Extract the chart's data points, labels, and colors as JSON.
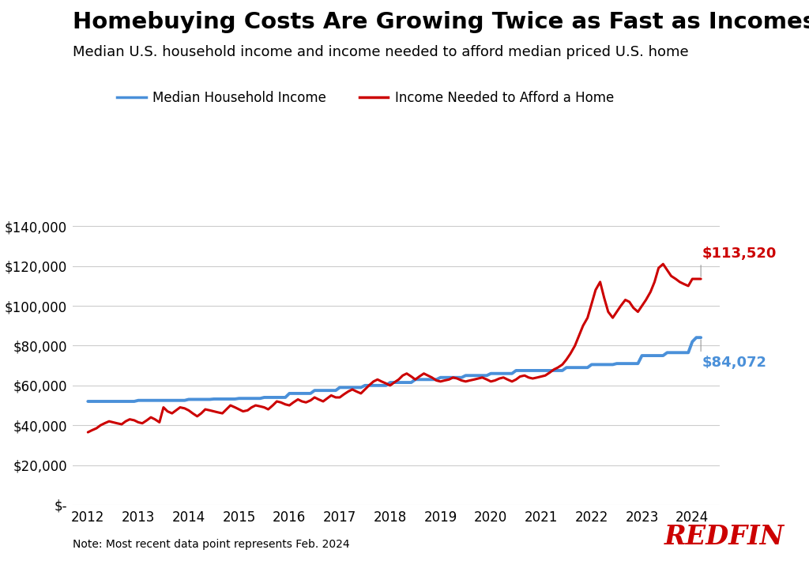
{
  "title": "Homebuying Costs Are Growing Twice as Fast as Incomes",
  "subtitle": "Median U.S. household income and income needed to afford median priced U.S. home",
  "note": "Note: Most recent data point represents Feb. 2024",
  "redfin_text": "REDFIN",
  "background_color": "#ffffff",
  "title_fontsize": 21,
  "subtitle_fontsize": 13,
  "median_household_income_color": "#4A90D9",
  "income_needed_color": "#CC0000",
  "annotation_red": "$113,520",
  "annotation_blue": "$84,072",
  "ylim": [
    0,
    155000
  ],
  "yticks": [
    0,
    20000,
    40000,
    60000,
    80000,
    100000,
    120000,
    140000
  ],
  "ytick_labels": [
    "$-",
    "$20,000",
    "$40,000",
    "$60,000",
    "$80,000",
    "$100,000",
    "$120,000",
    "$140,000"
  ],
  "xlim": [
    2011.7,
    2024.55
  ],
  "xticks": [
    2012,
    2013,
    2014,
    2015,
    2016,
    2017,
    2018,
    2019,
    2020,
    2021,
    2022,
    2023,
    2024
  ],
  "median_household_income": {
    "dates": [
      2012.0,
      2012.08,
      2012.17,
      2012.25,
      2012.33,
      2012.42,
      2012.5,
      2012.58,
      2012.67,
      2012.75,
      2012.83,
      2012.92,
      2013.0,
      2013.08,
      2013.17,
      2013.25,
      2013.33,
      2013.42,
      2013.5,
      2013.58,
      2013.67,
      2013.75,
      2013.83,
      2013.92,
      2014.0,
      2014.08,
      2014.17,
      2014.25,
      2014.33,
      2014.42,
      2014.5,
      2014.58,
      2014.67,
      2014.75,
      2014.83,
      2014.92,
      2015.0,
      2015.08,
      2015.17,
      2015.25,
      2015.33,
      2015.42,
      2015.5,
      2015.58,
      2015.67,
      2015.75,
      2015.83,
      2015.92,
      2016.0,
      2016.08,
      2016.17,
      2016.25,
      2016.33,
      2016.42,
      2016.5,
      2016.58,
      2016.67,
      2016.75,
      2016.83,
      2016.92,
      2017.0,
      2017.08,
      2017.17,
      2017.25,
      2017.33,
      2017.42,
      2017.5,
      2017.58,
      2017.67,
      2017.75,
      2017.83,
      2017.92,
      2018.0,
      2018.08,
      2018.17,
      2018.25,
      2018.33,
      2018.42,
      2018.5,
      2018.58,
      2018.67,
      2018.75,
      2018.83,
      2018.92,
      2019.0,
      2019.08,
      2019.17,
      2019.25,
      2019.33,
      2019.42,
      2019.5,
      2019.58,
      2019.67,
      2019.75,
      2019.83,
      2019.92,
      2020.0,
      2020.08,
      2020.17,
      2020.25,
      2020.33,
      2020.42,
      2020.5,
      2020.58,
      2020.67,
      2020.75,
      2020.83,
      2020.92,
      2021.0,
      2021.08,
      2021.17,
      2021.25,
      2021.33,
      2021.42,
      2021.5,
      2021.58,
      2021.67,
      2021.75,
      2021.83,
      2021.92,
      2022.0,
      2022.08,
      2022.17,
      2022.25,
      2022.33,
      2022.42,
      2022.5,
      2022.58,
      2022.67,
      2022.75,
      2022.83,
      2022.92,
      2023.0,
      2023.08,
      2023.17,
      2023.25,
      2023.33,
      2023.42,
      2023.5,
      2023.58,
      2023.67,
      2023.75,
      2023.83,
      2023.92,
      2024.0,
      2024.08,
      2024.17
    ],
    "values": [
      52000,
      52000,
      52000,
      52000,
      52000,
      52000,
      52000,
      52000,
      52000,
      52000,
      52000,
      52000,
      52500,
      52500,
      52500,
      52500,
      52500,
      52500,
      52500,
      52500,
      52500,
      52500,
      52500,
      52500,
      53000,
      53000,
      53000,
      53000,
      53000,
      53000,
      53200,
      53200,
      53200,
      53200,
      53200,
      53200,
      53500,
      53500,
      53500,
      53500,
      53500,
      53500,
      54000,
      54000,
      54000,
      54000,
      54000,
      54000,
      56000,
      56000,
      56000,
      56000,
      56000,
      56000,
      57500,
      57500,
      57500,
      57500,
      57500,
      57500,
      59000,
      59000,
      59000,
      59000,
      59000,
      59000,
      60000,
      60000,
      60000,
      60000,
      60000,
      60000,
      61500,
      61500,
      61500,
      61500,
      61500,
      61500,
      63000,
      63000,
      63000,
      63000,
      63000,
      63000,
      64000,
      64000,
      64000,
      64000,
      64000,
      64000,
      65000,
      65000,
      65000,
      65000,
      65000,
      65000,
      66000,
      66000,
      66000,
      66000,
      66000,
      66000,
      67500,
      67500,
      67500,
      67500,
      67500,
      67500,
      67500,
      67500,
      67500,
      67500,
      67500,
      67500,
      69000,
      69000,
      69000,
      69000,
      69000,
      69000,
      70500,
      70500,
      70500,
      70500,
      70500,
      70500,
      71000,
      71000,
      71000,
      71000,
      71000,
      71000,
      75000,
      75000,
      75000,
      75000,
      75000,
      75000,
      76500,
      76500,
      76500,
      76500,
      76500,
      76500,
      82000,
      84072,
      84072
    ]
  },
  "income_needed": {
    "dates": [
      2012.0,
      2012.08,
      2012.17,
      2012.25,
      2012.33,
      2012.42,
      2012.5,
      2012.58,
      2012.67,
      2012.75,
      2012.83,
      2012.92,
      2013.0,
      2013.08,
      2013.17,
      2013.25,
      2013.33,
      2013.42,
      2013.5,
      2013.58,
      2013.67,
      2013.75,
      2013.83,
      2013.92,
      2014.0,
      2014.08,
      2014.17,
      2014.25,
      2014.33,
      2014.42,
      2014.5,
      2014.58,
      2014.67,
      2014.75,
      2014.83,
      2014.92,
      2015.0,
      2015.08,
      2015.17,
      2015.25,
      2015.33,
      2015.42,
      2015.5,
      2015.58,
      2015.67,
      2015.75,
      2015.83,
      2015.92,
      2016.0,
      2016.08,
      2016.17,
      2016.25,
      2016.33,
      2016.42,
      2016.5,
      2016.58,
      2016.67,
      2016.75,
      2016.83,
      2016.92,
      2017.0,
      2017.08,
      2017.17,
      2017.25,
      2017.33,
      2017.42,
      2017.5,
      2017.58,
      2017.67,
      2017.75,
      2017.83,
      2017.92,
      2018.0,
      2018.08,
      2018.17,
      2018.25,
      2018.33,
      2018.42,
      2018.5,
      2018.58,
      2018.67,
      2018.75,
      2018.83,
      2018.92,
      2019.0,
      2019.08,
      2019.17,
      2019.25,
      2019.33,
      2019.42,
      2019.5,
      2019.58,
      2019.67,
      2019.75,
      2019.83,
      2019.92,
      2020.0,
      2020.08,
      2020.17,
      2020.25,
      2020.33,
      2020.42,
      2020.5,
      2020.58,
      2020.67,
      2020.75,
      2020.83,
      2020.92,
      2021.0,
      2021.08,
      2021.17,
      2021.25,
      2021.33,
      2021.42,
      2021.5,
      2021.58,
      2021.67,
      2021.75,
      2021.83,
      2021.92,
      2022.0,
      2022.08,
      2022.17,
      2022.25,
      2022.33,
      2022.42,
      2022.5,
      2022.58,
      2022.67,
      2022.75,
      2022.83,
      2022.92,
      2023.0,
      2023.08,
      2023.17,
      2023.25,
      2023.33,
      2023.42,
      2023.5,
      2023.58,
      2023.67,
      2023.75,
      2023.83,
      2023.92,
      2024.0,
      2024.08,
      2024.17
    ],
    "values": [
      36500,
      37500,
      38500,
      40000,
      41000,
      42000,
      41500,
      41000,
      40500,
      42000,
      43000,
      42500,
      41500,
      41000,
      42500,
      44000,
      43000,
      41500,
      49000,
      47000,
      46000,
      47500,
      49000,
      48500,
      47500,
      46000,
      44500,
      46000,
      48000,
      47500,
      47000,
      46500,
      46000,
      48000,
      50000,
      49000,
      48000,
      47000,
      47500,
      49000,
      50000,
      49500,
      49000,
      48000,
      50000,
      52000,
      51500,
      50500,
      50000,
      51500,
      53000,
      52000,
      51500,
      52500,
      54000,
      53000,
      52000,
      53500,
      55000,
      54000,
      54000,
      55500,
      57000,
      58000,
      57000,
      56000,
      58000,
      60000,
      62000,
      63000,
      62000,
      61000,
      60000,
      61500,
      63000,
      65000,
      66000,
      64500,
      63000,
      64500,
      66000,
      65000,
      64000,
      62500,
      62000,
      62500,
      63000,
      64000,
      63500,
      62500,
      62000,
      62500,
      63000,
      63500,
      64000,
      63000,
      62000,
      62500,
      63500,
      64000,
      63000,
      62000,
      63000,
      64500,
      65000,
      64000,
      63500,
      64000,
      64500,
      65000,
      66500,
      68000,
      69000,
      70500,
      73000,
      76000,
      80000,
      85000,
      90000,
      94000,
      101000,
      108000,
      112000,
      104000,
      97000,
      94000,
      97000,
      100000,
      103000,
      102000,
      99000,
      97000,
      100000,
      103000,
      107000,
      112000,
      119000,
      121000,
      118000,
      115000,
      113520,
      112000,
      111000,
      110000,
      113520,
      113520,
      113520
    ]
  }
}
